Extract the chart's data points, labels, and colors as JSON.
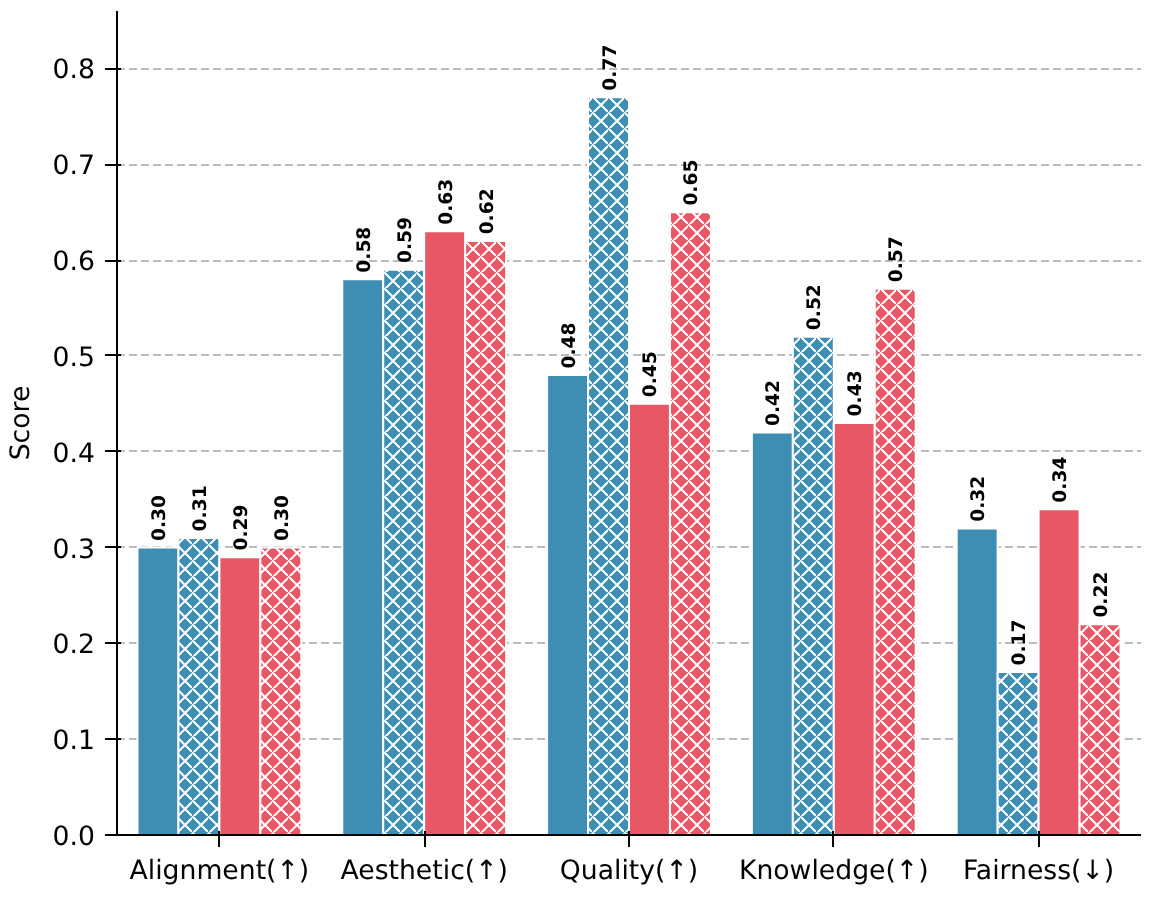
{
  "chart_data": {
    "type": "bar",
    "ylabel": "Score",
    "categories": [
      "Alignment(↑)",
      "Aesthetic(↑)",
      "Quality(↑)",
      "Knowledge(↑)",
      "Fairness(↓)"
    ],
    "series": [
      {
        "color": "#3e8db3",
        "values": [
          0.3,
          0.58,
          0.48,
          0.42,
          0.32
        ],
        "value_labels": [
          "0.30",
          "0.58",
          "0.48",
          "0.42",
          "0.32"
        ]
      },
      {
        "color": "#3e8db3",
        "values": [
          0.31,
          0.59,
          0.77,
          0.52,
          0.17
        ],
        "value_labels": [
          "0.31",
          "0.59",
          "0.77",
          "0.52",
          "0.17"
        ]
      },
      {
        "color": "#e85766",
        "values": [
          0.29,
          0.63,
          0.45,
          0.43,
          0.34
        ],
        "value_labels": [
          "0.29",
          "0.63",
          "0.45",
          "0.43",
          "0.34"
        ]
      },
      {
        "color": "#e85766",
        "values": [
          0.3,
          0.62,
          0.65,
          0.57,
          0.22
        ],
        "value_labels": [
          "0.30",
          "0.62",
          "0.65",
          "0.57",
          "0.22"
        ]
      }
    ],
    "ylim": [
      0,
      0.86
    ],
    "yticks": [
      {
        "value": 0,
        "label": "0.0"
      },
      0.1,
      0.2,
      0.3,
      0.4,
      0.5,
      0.6,
      0.7,
      0.8
    ],
    "grid": "y"
  }
}
